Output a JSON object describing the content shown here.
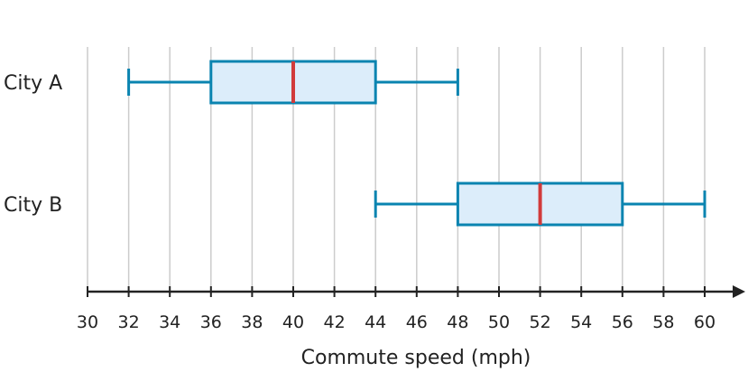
{
  "chart_data": {
    "type": "boxplot",
    "orientation": "horizontal",
    "xlabel": "Commute speed (mph)",
    "xlim": [
      30,
      61
    ],
    "xticks": [
      30,
      32,
      34,
      36,
      38,
      40,
      42,
      44,
      46,
      48,
      50,
      52,
      54,
      56,
      58,
      60
    ],
    "grid": true,
    "series": [
      {
        "name": "City A",
        "min": 32,
        "q1": 36,
        "median": 40,
        "q3": 44,
        "max": 48
      },
      {
        "name": "City B",
        "min": 44,
        "q1": 48,
        "median": 52,
        "q3": 56,
        "max": 60
      }
    ],
    "colors": {
      "box_stroke": "#0a84b0",
      "box_fill": "#dcedfa",
      "median": "#d13b3b",
      "grid": "#cccccc",
      "axis": "#222222"
    }
  }
}
